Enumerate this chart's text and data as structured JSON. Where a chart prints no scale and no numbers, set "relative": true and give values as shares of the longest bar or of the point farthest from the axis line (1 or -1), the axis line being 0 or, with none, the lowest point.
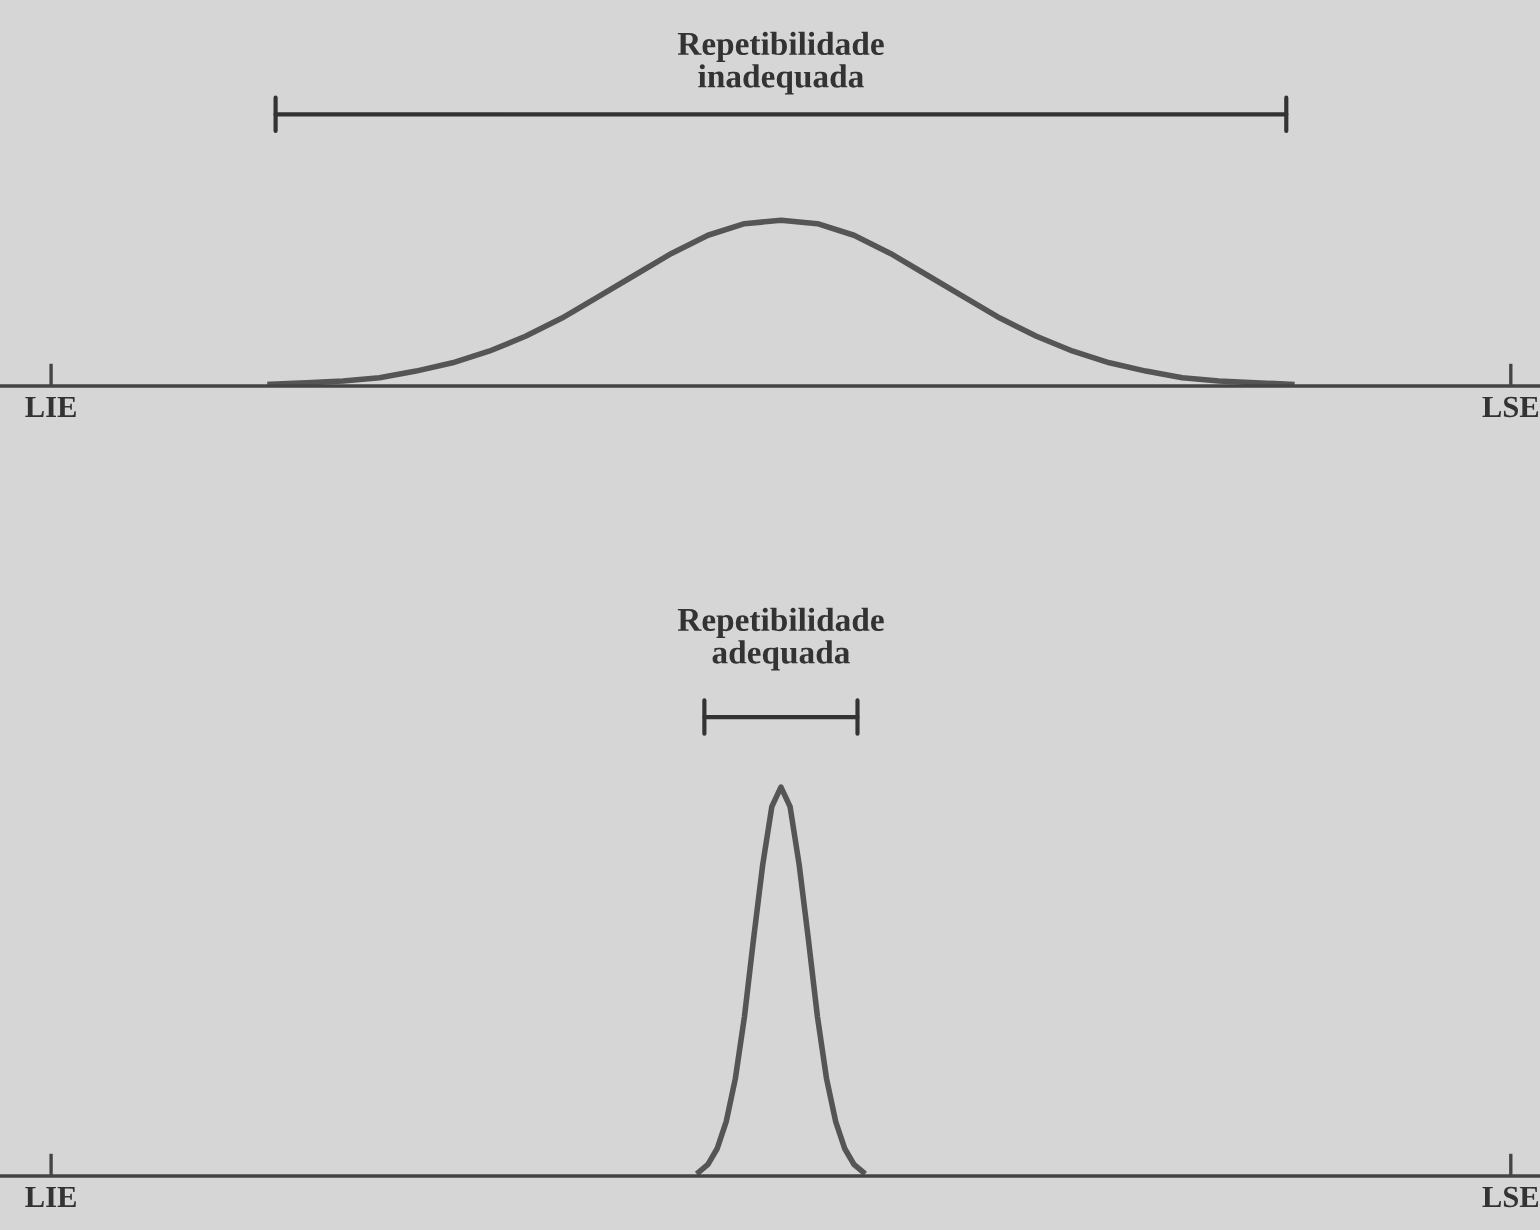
{
  "chart_data": [
    {
      "type": "line",
      "relative": true,
      "annotations": [
        "Repetibilidade inadequada"
      ],
      "grid": false,
      "categories": [
        "LIE",
        null,
        null,
        null,
        null,
        null,
        null,
        null,
        null,
        null,
        null,
        null,
        null,
        null,
        null,
        null,
        null,
        null,
        null,
        null,
        null,
        null,
        null,
        null,
        null,
        null,
        null,
        null,
        null,
        null,
        null,
        null,
        null,
        null,
        null,
        null,
        null,
        null,
        null,
        null,
        "LSE"
      ],
      "series": [
        {
          "color": "#555555",
          "values": [
            null,
            null,
            null,
            null,
            null,
            null,
            0.01,
            0.02,
            0.03,
            0.05,
            0.09,
            0.14,
            0.21,
            0.3,
            0.41,
            0.54,
            0.67,
            0.8,
            0.91,
            0.98,
            1,
            0.98,
            0.91,
            0.8,
            0.67,
            0.54,
            0.41,
            0.3,
            0.21,
            0.14,
            0.09,
            0.05,
            0.03,
            0.02,
            0.01,
            null,
            null,
            null,
            null,
            null,
            null
          ]
        }
      ]
    },
    {
      "type": "line",
      "relative": true,
      "annotations": [
        "Repetibilidade adequada"
      ],
      "grid": false,
      "categories": [
        "LIE",
        null,
        null,
        null,
        null,
        null,
        null,
        null,
        null,
        null,
        null,
        null,
        null,
        null,
        null,
        null,
        null,
        null,
        null,
        null,
        null,
        null,
        null,
        null,
        null,
        null,
        null,
        null,
        null,
        null,
        null,
        null,
        null,
        null,
        null,
        null,
        null,
        null,
        null,
        null,
        null,
        null,
        null,
        null,
        null,
        null,
        null,
        null,
        null,
        null,
        null,
        null,
        null,
        null,
        null,
        null,
        null,
        null,
        null,
        null,
        null,
        null,
        null,
        null,
        null,
        null,
        null,
        null,
        null,
        null,
        null,
        null,
        null,
        null,
        null,
        null,
        null,
        null,
        null,
        null,
        null,
        null,
        null,
        null,
        null,
        null,
        null,
        null,
        null,
        null,
        null,
        null,
        null,
        null,
        null,
        null,
        null,
        null,
        null,
        null,
        null,
        null,
        null,
        null,
        null,
        null,
        null,
        null,
        null,
        null,
        null,
        null,
        null,
        null,
        null,
        null,
        null,
        null,
        null,
        null,
        null,
        null,
        null,
        null,
        null,
        null,
        null,
        null,
        null,
        null,
        null,
        null,
        null,
        null,
        null,
        null,
        null,
        null,
        null,
        null,
        null,
        null,
        null,
        null,
        null,
        null,
        null,
        null,
        null,
        null,
        null,
        null,
        null,
        null,
        null,
        null,
        null,
        null,
        null,
        null,
        "LSE"
      ],
      "series": [
        {
          "color": "#555555",
          "values": [
            null,
            null,
            null,
            null,
            null,
            null,
            null,
            null,
            null,
            null,
            null,
            null,
            null,
            null,
            null,
            null,
            null,
            null,
            null,
            null,
            null,
            null,
            null,
            null,
            null,
            null,
            null,
            null,
            null,
            null,
            null,
            null,
            null,
            null,
            null,
            null,
            null,
            null,
            null,
            null,
            null,
            null,
            null,
            null,
            null,
            null,
            null,
            null,
            null,
            null,
            null,
            null,
            null,
            null,
            null,
            null,
            null,
            null,
            null,
            null,
            null,
            null,
            null,
            null,
            null,
            null,
            null,
            null,
            null,
            null,
            null,
            0.01,
            0.03,
            0.07,
            0.14,
            0.25,
            0.41,
            0.61,
            0.8,
            0.95,
            1,
            0.95,
            0.8,
            0.61,
            0.41,
            0.25,
            0.14,
            0.07,
            0.03,
            0.01,
            null,
            null,
            null,
            null,
            null,
            null,
            null,
            null,
            null,
            null,
            null,
            null,
            null,
            null,
            null,
            null,
            null,
            null,
            null,
            null,
            null,
            null,
            null,
            null,
            null,
            null,
            null,
            null,
            null,
            null,
            null,
            null,
            null,
            null,
            null,
            null,
            null,
            null,
            null,
            null,
            null,
            null,
            null,
            null,
            null,
            null,
            null,
            null,
            null,
            null,
            null,
            null,
            null,
            null,
            null,
            null,
            null,
            null,
            null,
            null,
            null,
            null,
            null,
            null,
            null,
            null,
            null,
            null,
            null,
            null,
            null
          ]
        }
      ]
    }
  ]
}
